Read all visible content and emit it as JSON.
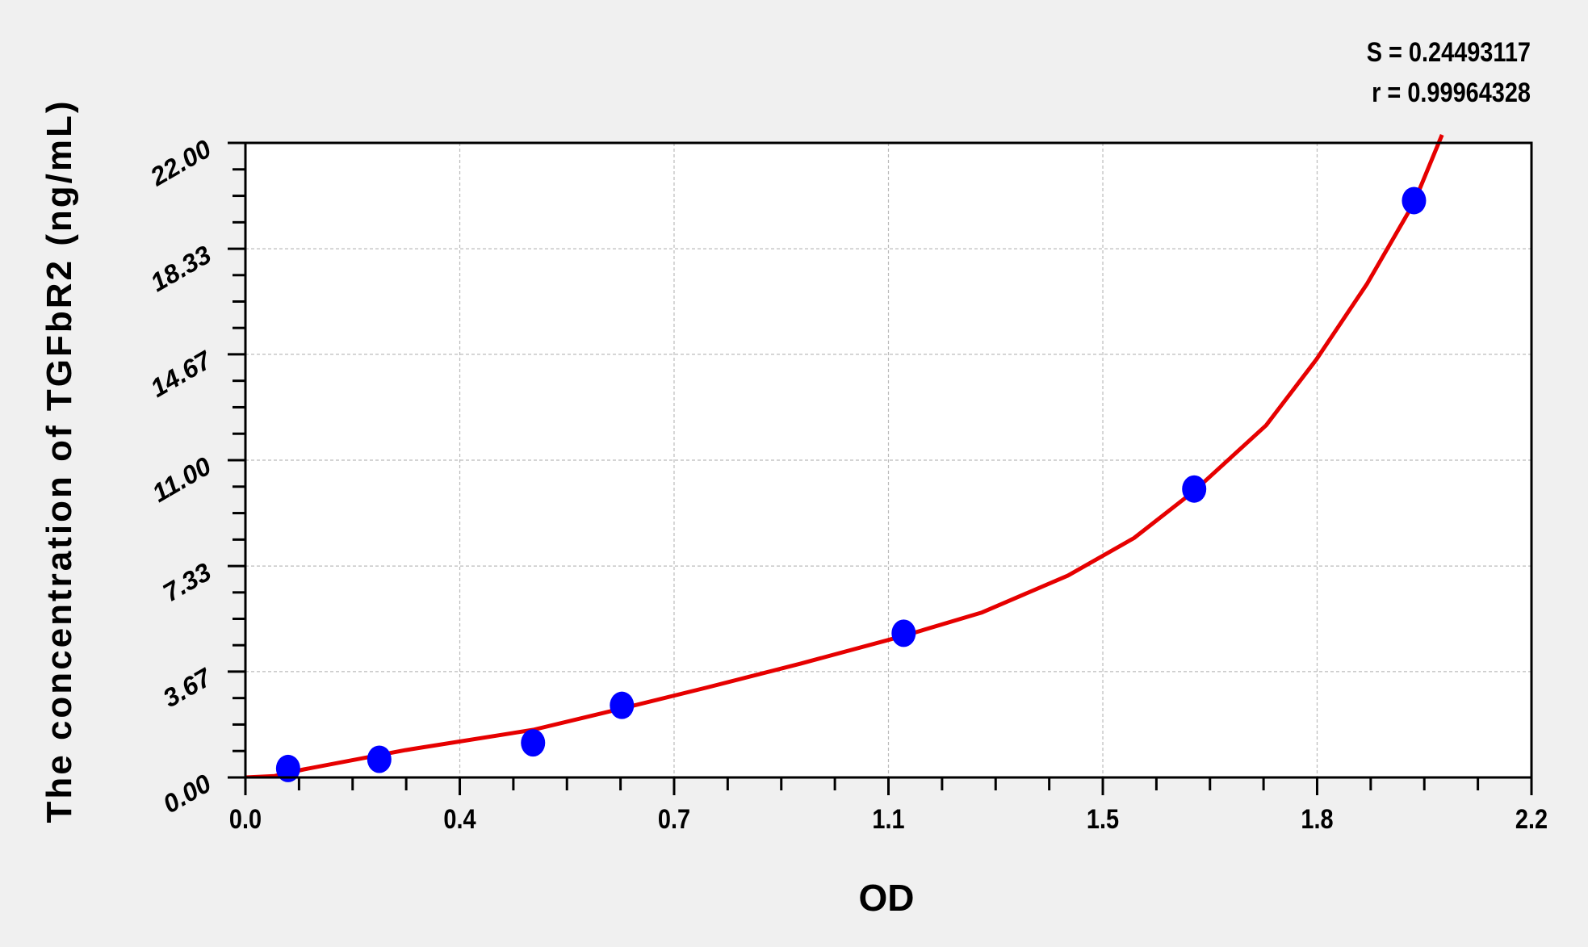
{
  "chart_data": {
    "type": "scatter",
    "title": "",
    "xlabel": "OD",
    "ylabel": "The concentration of TGFbR2 (ng/mL)",
    "xlim": [
      0,
      2.2
    ],
    "ylim": [
      0,
      22
    ],
    "x_tick_values": [
      0,
      0.3667,
      0.7333,
      1.1,
      1.4667,
      1.8333,
      2.2
    ],
    "x_tick_labels": [
      "0.0",
      "0.4",
      "0.7",
      "1.1",
      "1.5",
      "1.8",
      "2.2"
    ],
    "y_tick_values": [
      0,
      3.67,
      7.33,
      11,
      14.67,
      18.33,
      22
    ],
    "y_tick_labels": [
      "0.00",
      "3.67",
      "7.33",
      "11.00",
      "14.67",
      "18.33",
      "22.00"
    ],
    "grid": true,
    "annotations": [
      "S = 0.24493117",
      "r = 0.99964328"
    ],
    "series": [
      {
        "kind": "points",
        "color": "#0000ff",
        "points": [
          {
            "x": 0.073,
            "y": 0.31
          },
          {
            "x": 0.229,
            "y": 0.63
          },
          {
            "x": 0.492,
            "y": 1.2
          },
          {
            "x": 0.644,
            "y": 2.5
          },
          {
            "x": 1.126,
            "y": 5.0
          },
          {
            "x": 1.623,
            "y": 10.0
          },
          {
            "x": 1.999,
            "y": 20.0
          }
        ]
      },
      {
        "kind": "fitted-curve",
        "color": "#e60000",
        "points": [
          {
            "x": 0.0,
            "y": 0.0
          },
          {
            "x": 0.05,
            "y": 0.05
          },
          {
            "x": 0.1,
            "y": 0.28
          },
          {
            "x": 0.274,
            "y": 0.95
          },
          {
            "x": 0.492,
            "y": 1.65
          },
          {
            "x": 0.644,
            "y": 2.39
          },
          {
            "x": 0.79,
            "y": 3.12
          },
          {
            "x": 0.95,
            "y": 3.95
          },
          {
            "x": 1.126,
            "y": 4.91
          },
          {
            "x": 1.26,
            "y": 5.72
          },
          {
            "x": 1.407,
            "y": 7.0
          },
          {
            "x": 1.52,
            "y": 8.3
          },
          {
            "x": 1.623,
            "y": 9.93
          },
          {
            "x": 1.746,
            "y": 12.21
          },
          {
            "x": 1.832,
            "y": 14.49
          },
          {
            "x": 1.919,
            "y": 17.12
          },
          {
            "x": 1.999,
            "y": 19.93
          },
          {
            "x": 2.047,
            "y": 22.28
          }
        ]
      }
    ]
  }
}
